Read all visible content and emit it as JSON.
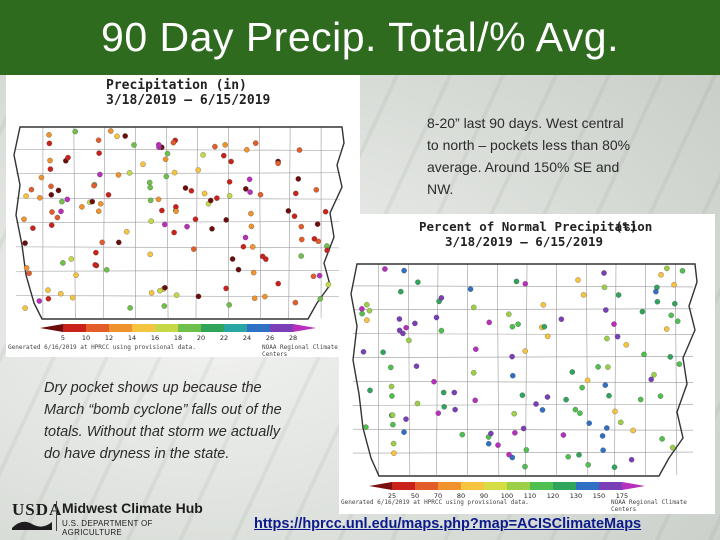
{
  "slide": {
    "title": "90 Day Precip. Total/% Avg.",
    "colors": {
      "title_bar": "#2e6b1f",
      "title_text": "#ffffff",
      "link": "#0b1a8c"
    }
  },
  "map_total": {
    "title_line1": "Precipitation (in)",
    "title_line2": "3/18/2019 – 6/15/2019",
    "scale_ticks": [
      "5",
      "10",
      "12",
      "14",
      "16",
      "18",
      "20",
      "22",
      "24",
      "26",
      "28"
    ],
    "scale_colors": [
      "#6b0d0d",
      "#c9221b",
      "#e35d2a",
      "#f0932f",
      "#f7c43f",
      "#c6d847",
      "#6fc04a",
      "#2fa45a",
      "#2aa5a5",
      "#2f6fc4",
      "#7a3fb6",
      "#b82ebd"
    ],
    "footer_left": "Generated 6/16/2019 at HPRCC using provisional data.",
    "footer_right": "NOAA Regional Climate Centers"
  },
  "map_percent": {
    "title_line1": "Percent of Normal Precipitation",
    "title_units": "(%)",
    "title_line2": "3/18/2019 – 6/15/2019",
    "scale_ticks": [
      "25",
      "50",
      "70",
      "80",
      "90",
      "100",
      "110",
      "120",
      "130",
      "150",
      "175"
    ],
    "scale_colors": [
      "#7a0f0f",
      "#c9221b",
      "#e35d2a",
      "#f0932f",
      "#f7c43f",
      "#d6dc44",
      "#9bcf47",
      "#4fbf4f",
      "#2fa45a",
      "#2f6fc4",
      "#7a3fb6",
      "#b82ebd"
    ],
    "footer_left": "Generated 6/16/2019 at HPRCC using provisional data.",
    "footer_right": "NOAA Regional Climate Centers"
  },
  "notes": {
    "top": "8-20” last 90 days. West central to north – pockets less than 80% average. Around 150% SE and NW.",
    "bottom": "Dry pocket shows up because the March “bomb cyclone” falls out of the totals. Without that storm we actually do have dryness in the state."
  },
  "logo": {
    "agency": "USDA",
    "hub": "Midwest Climate Hub",
    "department": "U.S. DEPARTMENT OF AGRICULTURE"
  },
  "link": {
    "url_text": "https://hprcc.unl.edu/maps.php?map=ACISClimateMaps"
  }
}
